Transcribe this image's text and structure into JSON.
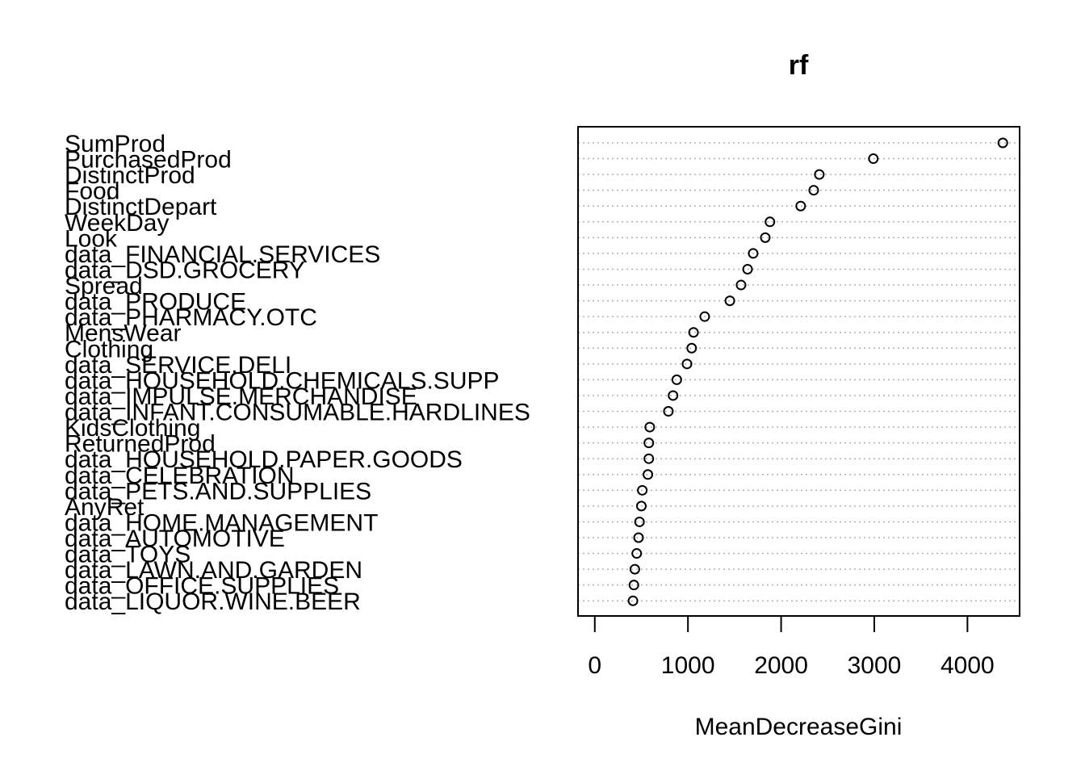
{
  "chart_data": {
    "type": "scatter",
    "subtype": "dotchart",
    "title": "rf",
    "xlabel": "MeanDecreaseGini",
    "ylabel": "",
    "xlim": [
      -180,
      4560
    ],
    "xticks": [
      0,
      1000,
      2000,
      3000,
      4000
    ],
    "xtick_labels": [
      "0",
      "1000",
      "2000",
      "3000",
      "4000"
    ],
    "grid": "dotted horizontal lines at each variable",
    "categories": [
      "SumProd",
      "PurchasedProd",
      "DistinctProd",
      "Food",
      "DistinctDepart",
      "WeekDay",
      "Look",
      "data_FINANCIAL.SERVICES",
      "data_DSD.GROCERY",
      "Spread",
      "data_PRODUCE",
      "data_PHARMACY.OTC",
      "MensWear",
      "Clothing",
      "data_SERVICE.DELI",
      "data_HOUSEHOLD.CHEMICALS.SUPP",
      "data_IMPULSE.MERCHANDISE",
      "data_INFANT.CONSUMABLE.HARDLINES",
      "KidsClothing",
      "ReturnedProd",
      "data_HOUSEHOLD.PAPER.GOODS",
      "data_CELEBRATION",
      "data_PETS.AND.SUPPLIES",
      "AnyRet",
      "data_HOME.MANAGEMENT",
      "data_AUTOMOTIVE",
      "data_TOYS",
      "data_LAWN.AND.GARDEN",
      "data_OFFICE.SUPPLIES",
      "data_LIQUOR.WINE.BEER"
    ],
    "values": [
      4380,
      2990,
      2410,
      2350,
      2210,
      1880,
      1830,
      1700,
      1640,
      1570,
      1450,
      1180,
      1060,
      1040,
      990,
      880,
      840,
      790,
      590,
      580,
      580,
      570,
      510,
      500,
      480,
      470,
      450,
      430,
      420,
      410
    ]
  }
}
